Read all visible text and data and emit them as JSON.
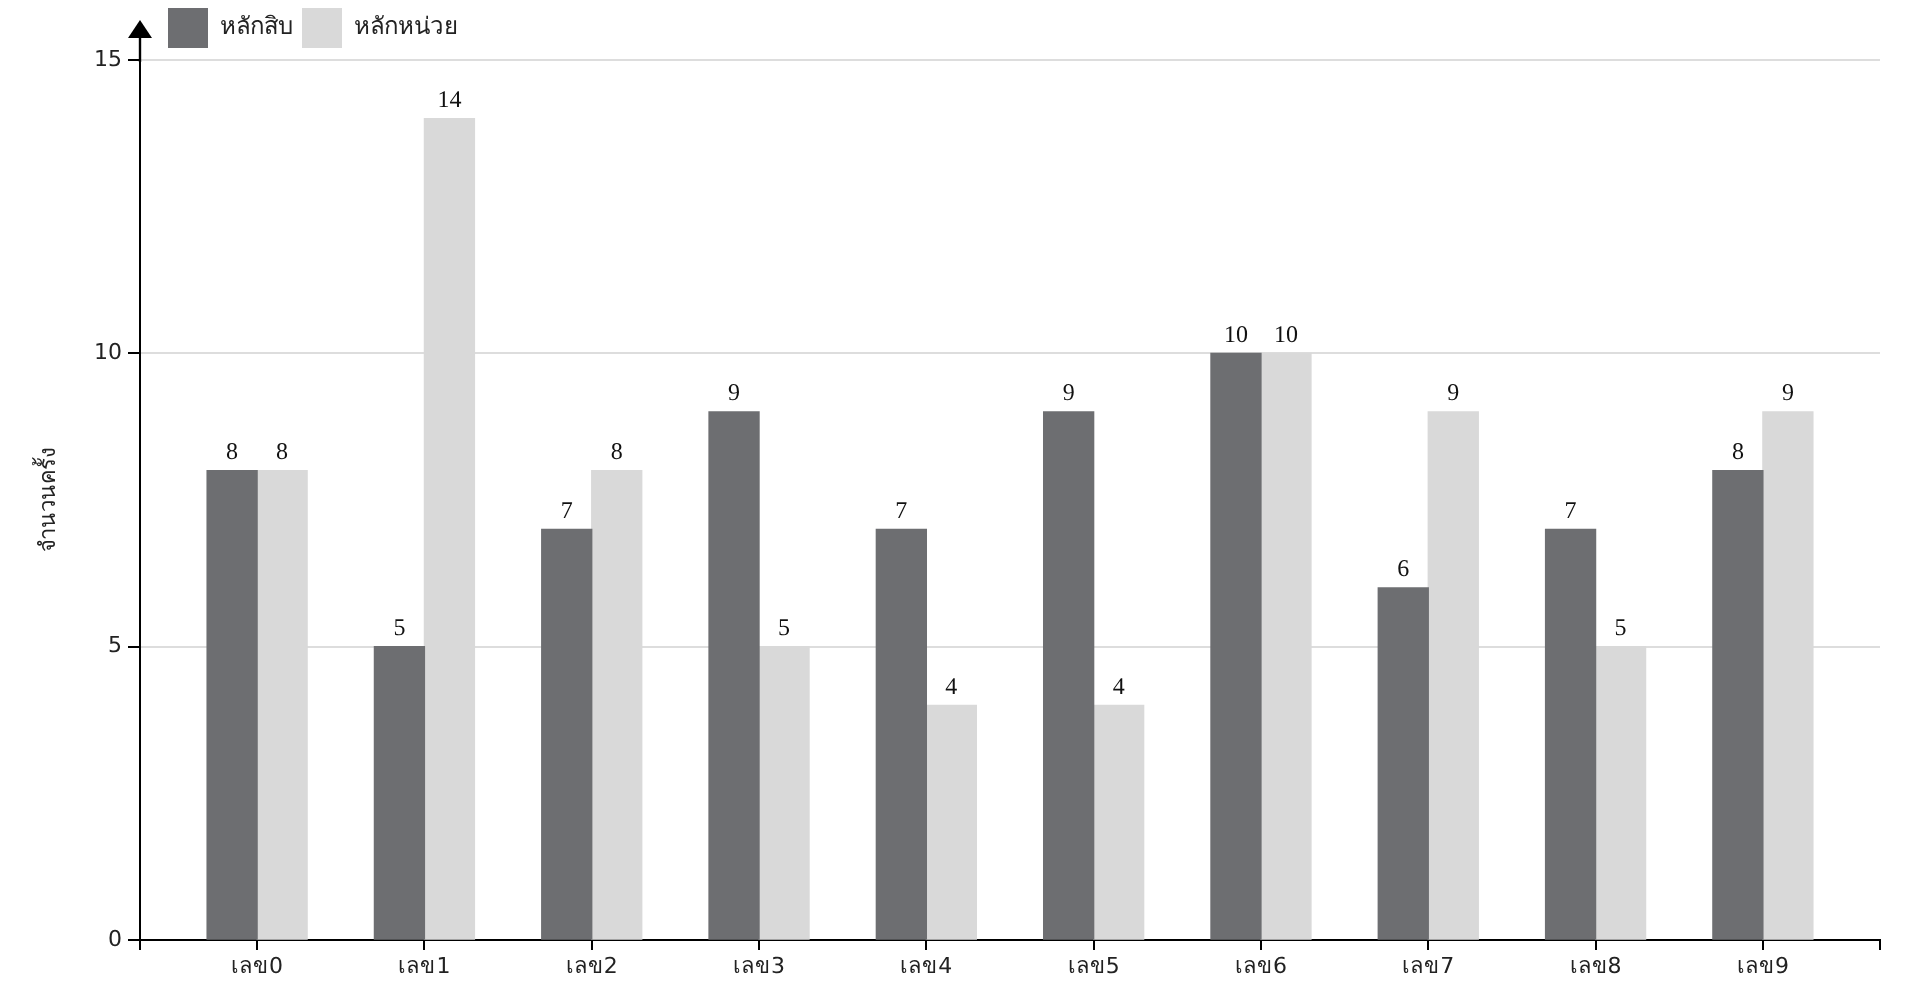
{
  "chart_data": {
    "type": "bar",
    "ylabel": "จำนวนครั้ง",
    "categories": [
      "เลข0",
      "เลข1",
      "เลข2",
      "เลข3",
      "เลข4",
      "เลข5",
      "เลข6",
      "เลข7",
      "เลข8",
      "เลข9"
    ],
    "series": [
      {
        "name": "หลักสิบ",
        "color": "#6d6e71",
        "values": [
          8,
          5,
          7,
          9,
          7,
          9,
          10,
          6,
          7,
          8
        ]
      },
      {
        "name": "หลักหน่วย",
        "color": "#d9d9d9",
        "values": [
          8,
          14,
          8,
          5,
          4,
          4,
          10,
          9,
          5,
          9
        ]
      }
    ],
    "ylim": [
      0,
      15
    ],
    "yticks": [
      0,
      5,
      10,
      15
    ],
    "grid": "y",
    "legend": "top left",
    "data_labels": true
  }
}
